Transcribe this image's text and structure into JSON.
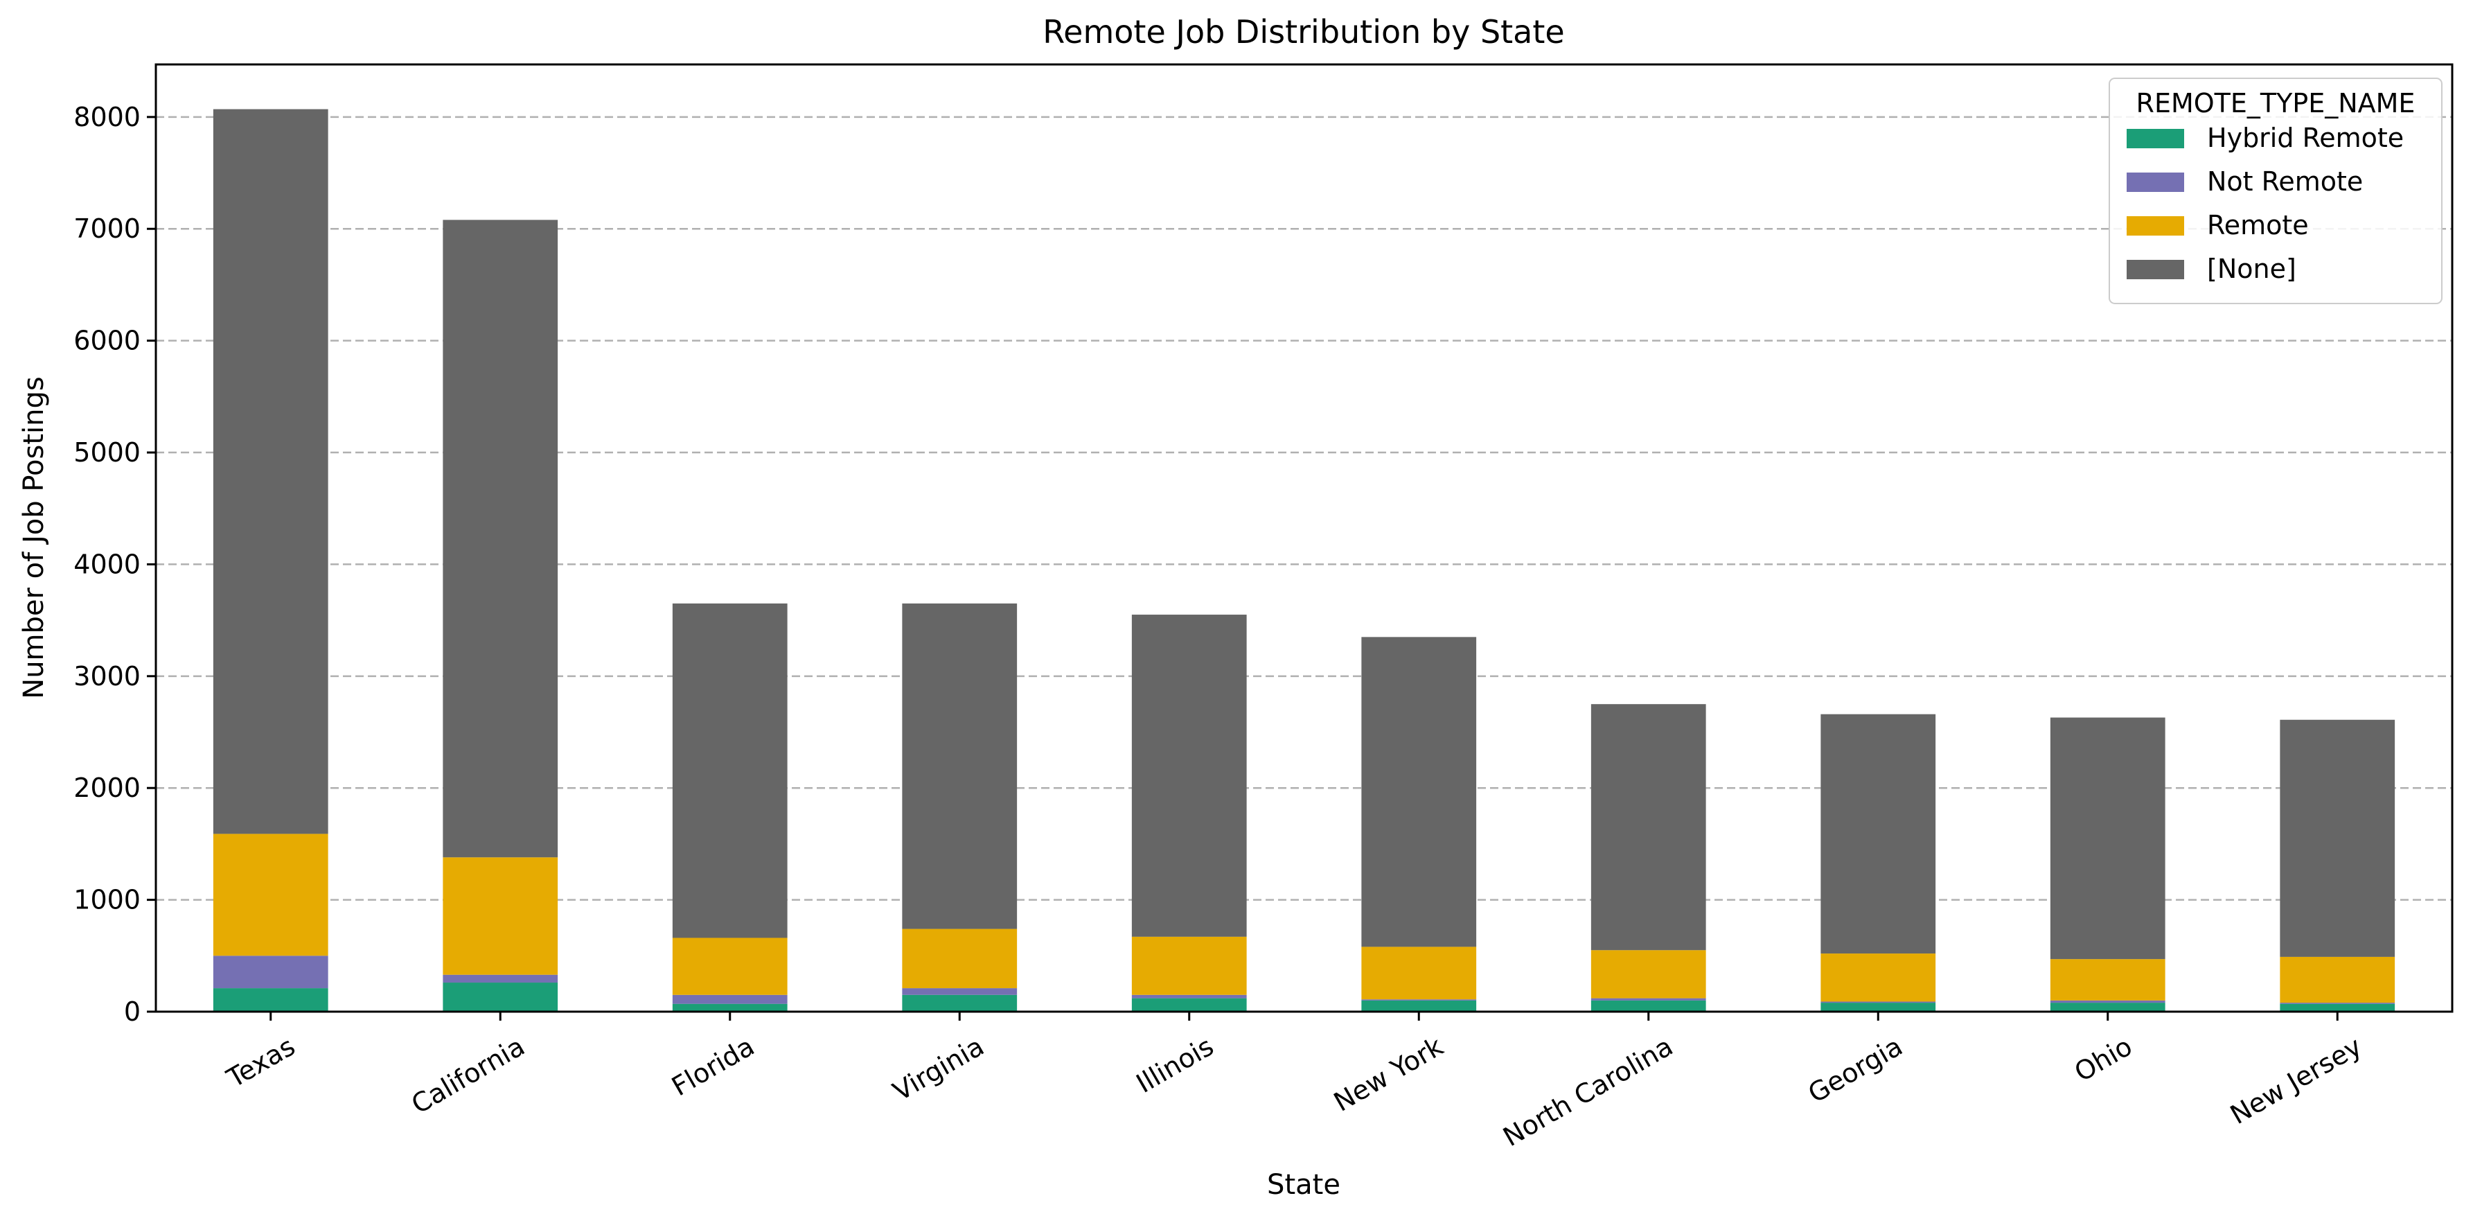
{
  "chart_data": {
    "type": "bar",
    "stacked": true,
    "title": "Remote Job Distribution by State",
    "xlabel": "State",
    "ylabel": "Number of Job Postings",
    "ylim": [
      0,
      8470
    ],
    "yticks": [
      0,
      1000,
      2000,
      3000,
      4000,
      5000,
      6000,
      7000,
      8000
    ],
    "grid": "y-dashed",
    "legend_title": "REMOTE_TYPE_NAME",
    "legend_position": "top-right",
    "categories": [
      "Texas",
      "California",
      "Florida",
      "Virginia",
      "Illinois",
      "New York",
      "North Carolina",
      "Georgia",
      "Ohio",
      "New Jersey"
    ],
    "series": [
      {
        "name": "Hybrid Remote",
        "color": "#1b9e77",
        "values": [
          210,
          260,
          70,
          150,
          120,
          100,
          100,
          80,
          80,
          70
        ]
      },
      {
        "name": "Not Remote",
        "color": "#7570b3",
        "values": [
          290,
          70,
          80,
          60,
          30,
          10,
          20,
          10,
          20,
          10
        ]
      },
      {
        "name": "Remote",
        "color": "#e6ab02",
        "values": [
          1090,
          1050,
          510,
          530,
          520,
          470,
          430,
          430,
          370,
          410
        ]
      },
      {
        "name": "[None]",
        "color": "#666666",
        "values": [
          6480,
          5700,
          2990,
          2910,
          2880,
          2770,
          2200,
          2140,
          2160,
          2120
        ]
      }
    ]
  }
}
